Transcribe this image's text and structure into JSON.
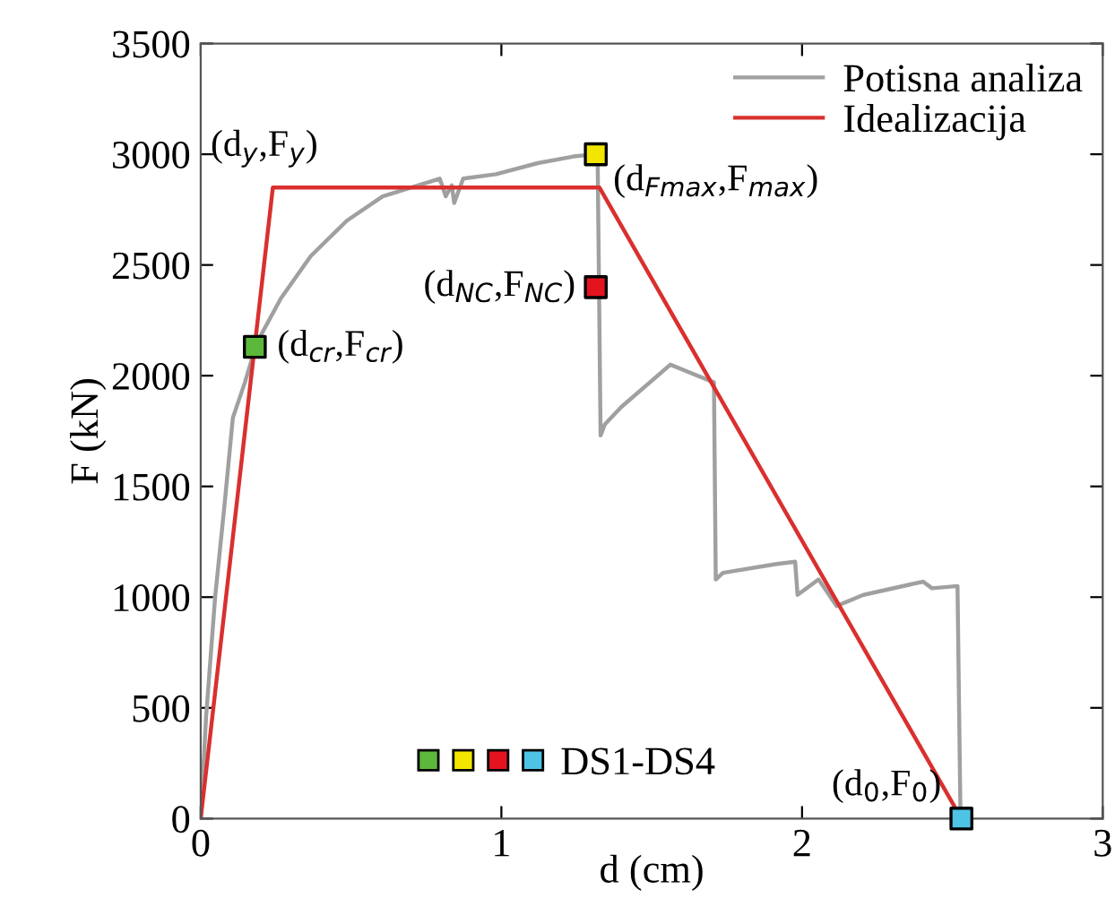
{
  "chart_data": {
    "type": "line",
    "xlabel": "d (cm)",
    "ylabel": "F (kN)",
    "xlim": [
      0,
      3
    ],
    "xticks": [
      0,
      1,
      2,
      3
    ],
    "ylim": [
      0,
      3500
    ],
    "yticks": [
      0,
      500,
      1000,
      1500,
      2000,
      2500,
      3000,
      3500
    ],
    "grid": false,
    "legend": "top right",
    "marker": "none",
    "line_style": "solid",
    "series": [
      {
        "name": "Potisna analiza",
        "color": "#a0a0a0",
        "x": [
          0,
          0.018,
          0.048,
          0.078,
          0.107,
          0.147,
          0.187,
          0.267,
          0.366,
          0.486,
          0.605,
          0.725,
          0.795,
          0.815,
          0.835,
          0.843,
          0.873,
          0.982,
          1.121,
          1.24,
          1.314,
          1.32,
          1.33,
          1.344,
          1.4,
          1.562,
          1.707,
          1.713,
          1.737,
          1.916,
          1.977,
          1.985,
          2.055,
          2.115,
          2.204,
          2.403,
          2.432,
          2.517,
          2.527
        ],
        "values": [
          0,
          460,
          1000,
          1400,
          1810,
          1970,
          2150,
          2350,
          2540,
          2700,
          2810,
          2860,
          2890,
          2810,
          2860,
          2780,
          2890,
          2910,
          2960,
          2990,
          3000,
          3000,
          1730,
          1780,
          1860,
          2050,
          1970,
          1080,
          1110,
          1150,
          1160,
          1010,
          1080,
          960,
          1010,
          1070,
          1040,
          1050,
          0
        ]
      },
      {
        "name": "Idealizacija",
        "color": "#d9302f",
        "x": [
          0,
          0.24,
          1.326,
          2.53
        ],
        "values": [
          0,
          2850,
          2850,
          0
        ]
      },
      {
        "name": "DS1-DS4",
        "type": "scatter",
        "marker": "square",
        "colors": [
          "#5cb83a",
          "#f2e600",
          "#e3141e",
          "#4fc3e6"
        ],
        "x": [
          0.18,
          1.314,
          1.314,
          2.53
        ],
        "values": [
          2130,
          3000,
          2400,
          0
        ]
      }
    ],
    "annotations": [
      {
        "text": "(d$_{y}$,F$_{y}$)",
        "x": 0.24,
        "y": 2850
      },
      {
        "text": "(d$_{cr}$,F$_{cr}$)",
        "x": 0.18,
        "y": 2130
      },
      {
        "text": "(d$_{Fmax}$,F$_{max}$)",
        "x": 1.314,
        "y": 3000
      },
      {
        "text": "(d$_{NC}$,F$_{NC}$)",
        "x": 1.314,
        "y": 2400
      },
      {
        "text": "(d$_{0}$,F$_{0}$)",
        "x": 2.53,
        "y": 0
      }
    ]
  }
}
